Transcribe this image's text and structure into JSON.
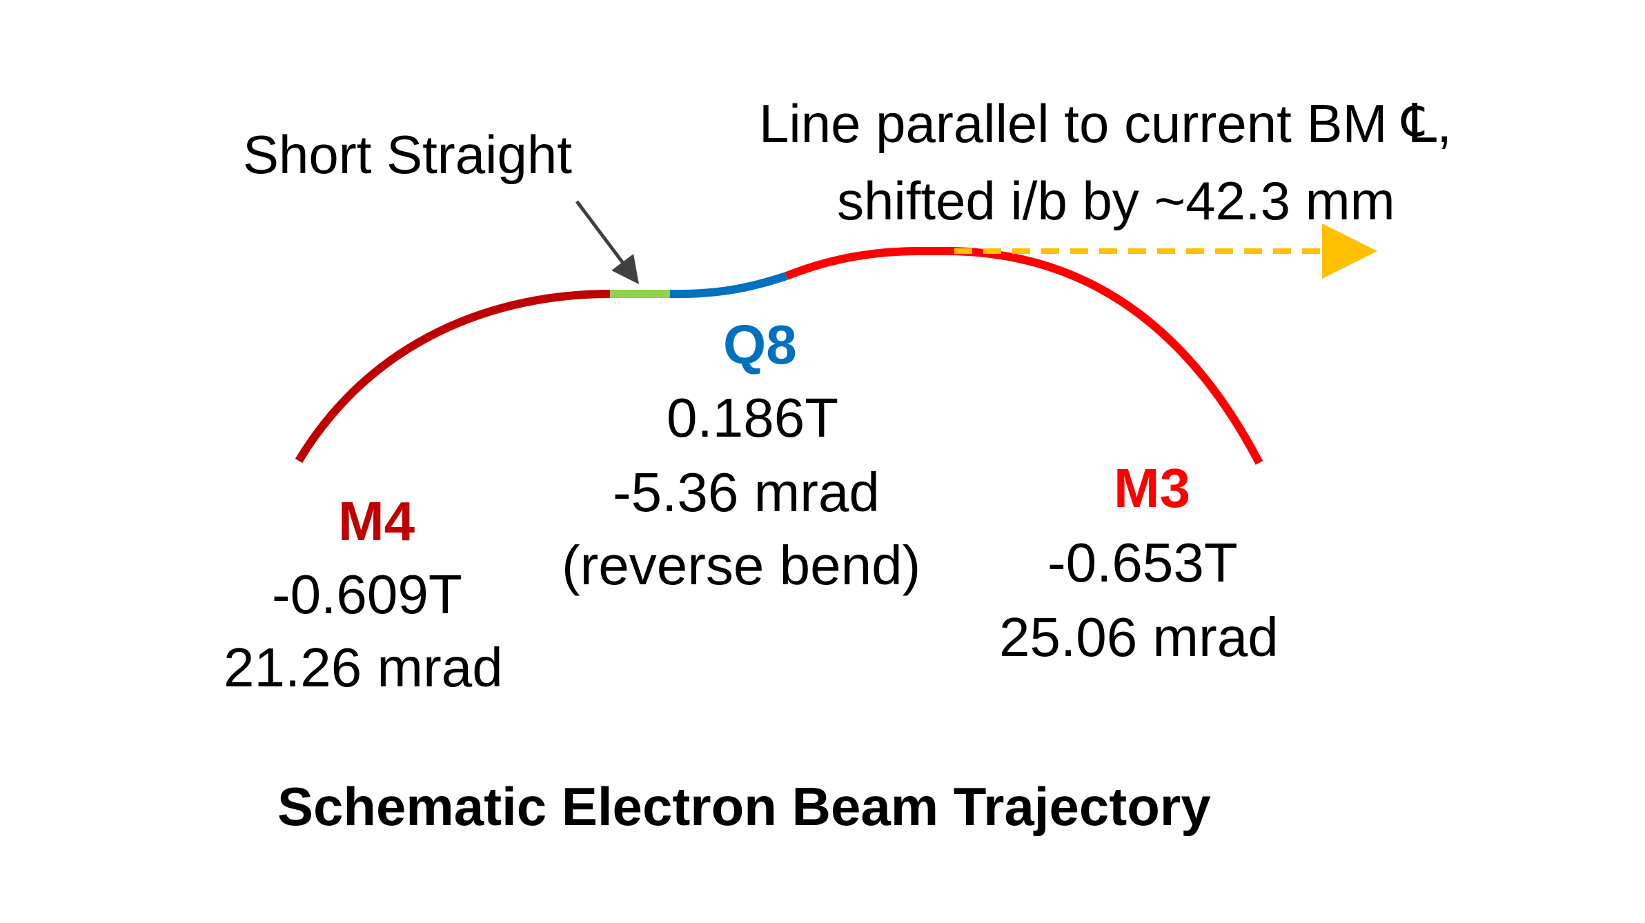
{
  "title": "Schematic Electron Beam Trajectory",
  "callouts": {
    "short_straight": "Short Straight",
    "parallel_line_1": "Line parallel to current BM ℄,",
    "parallel_line_2": "shifted i/b by ~42.3 mm"
  },
  "magnets": {
    "m4": {
      "name": "M4",
      "field": "-0.609T",
      "angle": "21.26 mrad",
      "color": "#c00000"
    },
    "q8": {
      "name": "Q8",
      "field": "0.186T",
      "angle": "-5.36 mrad",
      "note": "(reverse bend)",
      "color": "#0070c0"
    },
    "m3": {
      "name": "M3",
      "field": "-0.653T",
      "angle": "25.06 mrad",
      "color": "#ff0000"
    }
  },
  "colors": {
    "short_straight": "#92d050",
    "parallel_arrow": "#ffc000",
    "pointer_arrow": "#404040"
  }
}
